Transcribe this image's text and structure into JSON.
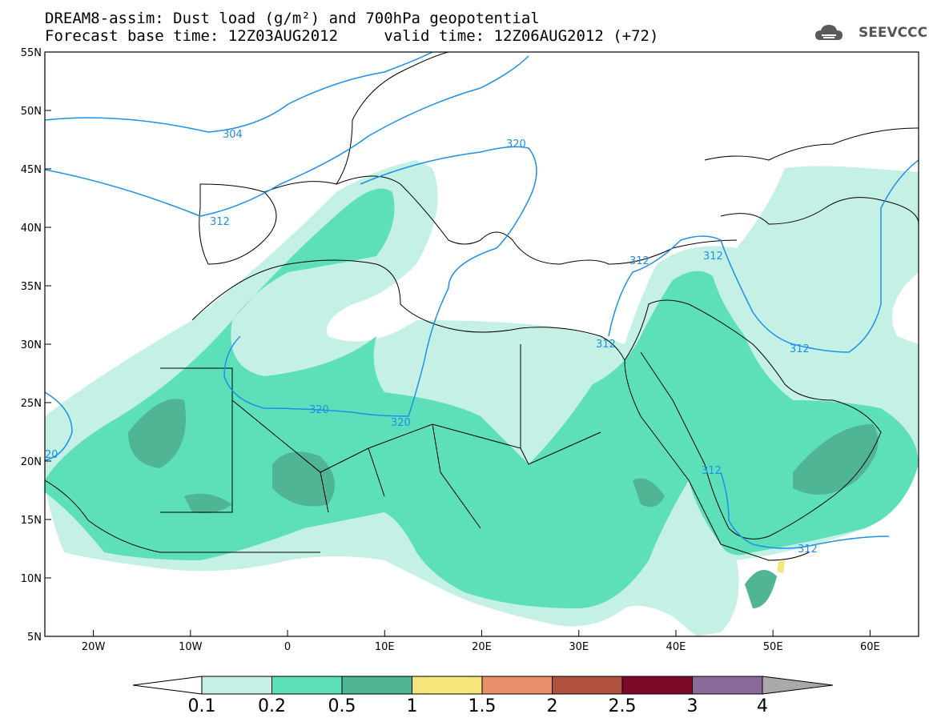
{
  "title": {
    "line1": "DREAM8-assim: Dust load (g/m²) and 700hPa geopotential",
    "line2": "Forecast base time: 12Z03AUG2012     valid time: 12Z06AUG2012 (+72)"
  },
  "logo": {
    "text": "SEEVCCC",
    "icon": "cloud-icon"
  },
  "map": {
    "lon_range": [
      -25,
      65
    ],
    "lat_range": [
      5,
      55
    ],
    "lon_ticks": [
      "20W",
      "10W",
      "0",
      "10E",
      "20E",
      "30E",
      "40E",
      "50E",
      "60E"
    ],
    "lat_ticks": [
      "55N",
      "50N",
      "45N",
      "40N",
      "35N",
      "30N",
      "25N",
      "20N",
      "15N",
      "10N",
      "5N"
    ],
    "contour_labels": [
      "304",
      "312",
      "320",
      "312",
      "320",
      "320",
      "20",
      "312",
      "312",
      "312",
      "312",
      "312"
    ]
  },
  "colorbar": {
    "labels": [
      "0.1",
      "0.2",
      "0.5",
      "1",
      "1.5",
      "2",
      "2.5",
      "3",
      "4"
    ],
    "colors": [
      "#c4f0e6",
      "#5de0ba",
      "#4fb594",
      "#f5e57a",
      "#e8916c",
      "#b0503e",
      "#7e0a2a",
      "#8a6a9a",
      "#a9a9a9"
    ]
  },
  "colors": {
    "dust_0_1": "#c4f0e6",
    "dust_0_2": "#5de0ba",
    "dust_0_5": "#4fb594",
    "dust_1": "#f5e57a",
    "contour": "#1e90e6"
  }
}
